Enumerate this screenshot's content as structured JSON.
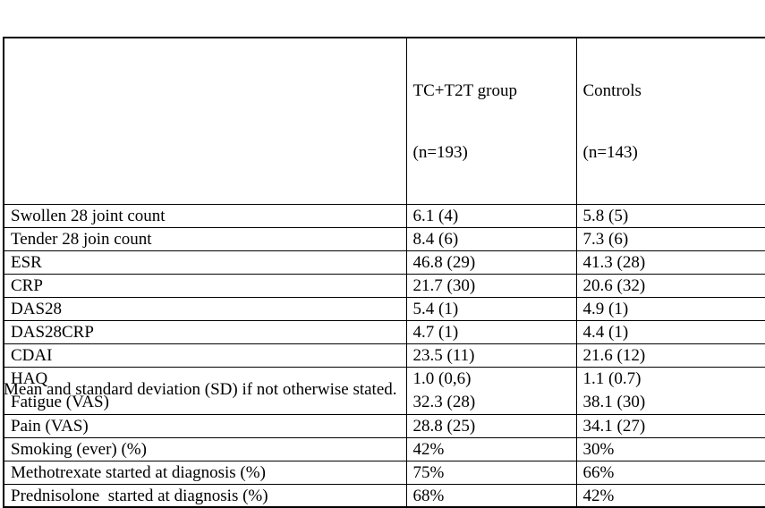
{
  "table": {
    "columns": [
      {
        "line1": "TC+T2T group",
        "line2": "(n=193)"
      },
      {
        "line1": "Controls",
        "line2": "(n=143)"
      }
    ],
    "rows": [
      {
        "label": "Swollen 28 joint count",
        "tc_t2t": "6.1 (4)",
        "controls": "5.8 (5)"
      },
      {
        "label": "Tender 28 join count",
        "tc_t2t": "8.4 (6)",
        "controls": "7.3 (6)"
      },
      {
        "label": "ESR",
        "tc_t2t": "46.8 (29)",
        "controls": "41.3 (28)"
      },
      {
        "label": "CRP",
        "tc_t2t": "21.7 (30)",
        "controls": "20.6 (32)"
      },
      {
        "label": "DAS28",
        "tc_t2t": "5.4 (1)",
        "controls": "4.9 (1)"
      },
      {
        "label": "DAS28CRP",
        "tc_t2t": "4.7 (1)",
        "controls": "4.4 (1)"
      },
      {
        "label": "CDAI",
        "tc_t2t": "23.5 (11)",
        "controls": "21.6 (12)"
      },
      {
        "label": "HAQ",
        "tc_t2t": "1.0 (0,6)",
        "controls": "1.1 (0.7)"
      },
      {
        "label": "Fatigue (VAS)",
        "tc_t2t": "32.3 (28)",
        "controls": "38.1 (30)"
      },
      {
        "label": "Pain (VAS)",
        "tc_t2t": "28.8 (25)",
        "controls": "34.1 (27)"
      },
      {
        "label": "Smoking (ever) (%)",
        "tc_t2t": "42%",
        "controls": "30%"
      },
      {
        "label": "Methotrexate started at diagnosis (%)",
        "tc_t2t": "75%",
        "controls": "66%"
      },
      {
        "label": "Prednisolone  started at diagnosis (%)",
        "tc_t2t": "68%",
        "controls": "42%"
      }
    ]
  },
  "footnote": "Mean and standard deviation (SD) if not otherwise stated."
}
